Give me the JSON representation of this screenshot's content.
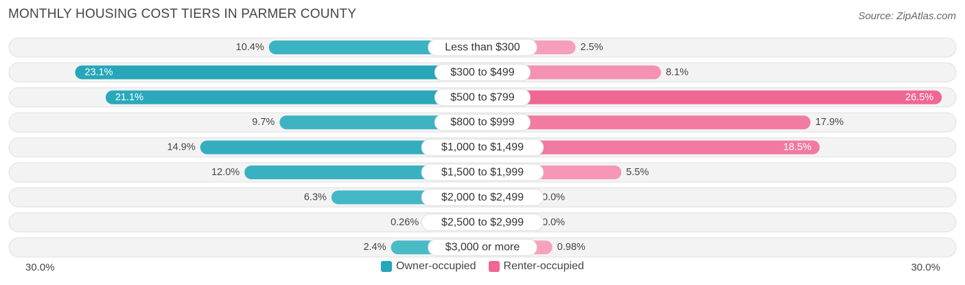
{
  "title": "MONTHLY HOUSING COST TIERS IN PARMER COUNTY",
  "source": "Source: ZipAtlas.com",
  "colors": {
    "owner": "#4dbdc9",
    "owner_dark": "#27a6b9",
    "renter": "#f7a4bf",
    "renter_dark": "#f06793",
    "row_bg": "#efefef"
  },
  "chart_data": {
    "type": "bar",
    "orientation": "horizontal-diverging",
    "title": "MONTHLY HOUSING COST TIERS IN PARMER COUNTY",
    "categories": [
      "Less than $300",
      "$300 to $499",
      "$500 to $799",
      "$800 to $999",
      "$1,000 to $1,499",
      "$1,500 to $1,999",
      "$2,000 to $2,499",
      "$2,500 to $2,999",
      "$3,000 or more"
    ],
    "series": [
      {
        "name": "Owner-occupied",
        "side": "left",
        "values": [
          10.4,
          23.1,
          21.1,
          9.7,
          14.9,
          12.0,
          6.3,
          0.26,
          2.4
        ],
        "labels": [
          "10.4%",
          "23.1%",
          "21.1%",
          "9.7%",
          "14.9%",
          "12.0%",
          "6.3%",
          "0.26%",
          "2.4%"
        ]
      },
      {
        "name": "Renter-occupied",
        "side": "right",
        "values": [
          2.5,
          8.1,
          26.5,
          17.9,
          18.5,
          5.5,
          0.0,
          0.0,
          0.98
        ],
        "labels": [
          "2.5%",
          "8.1%",
          "26.5%",
          "17.9%",
          "18.5%",
          "5.5%",
          "0.0%",
          "0.0%",
          "0.98%"
        ]
      }
    ],
    "xlim": [
      -30,
      30
    ],
    "axis_labels": {
      "left": "30.0%",
      "right": "30.0%"
    },
    "legend": [
      "Owner-occupied",
      "Renter-occupied"
    ]
  }
}
